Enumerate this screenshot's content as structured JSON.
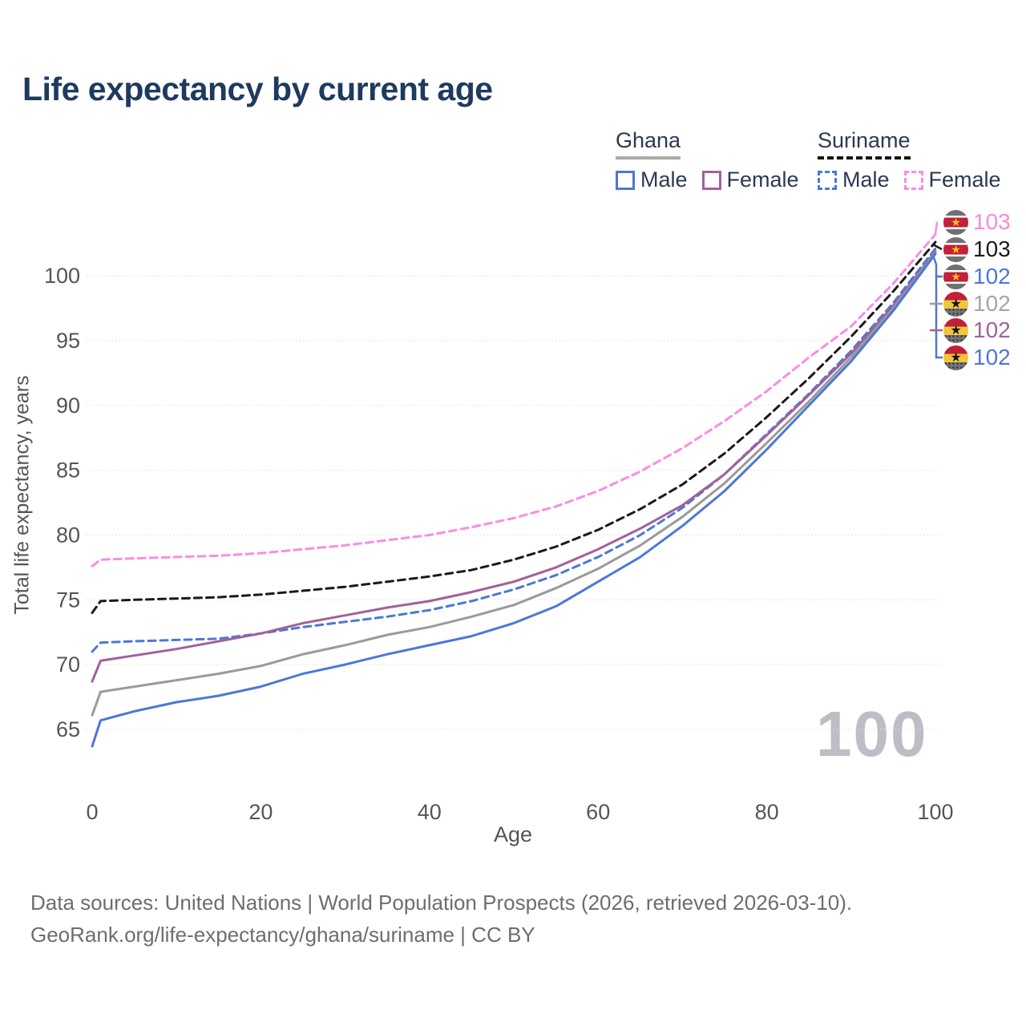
{
  "title": "Life expectancy by current age",
  "watermark": "100",
  "footer": {
    "line1": "Data sources: United Nations | World Population Prospects (2026, retrieved 2026-03-10).",
    "line2": "GeoRank.org/life-expectancy/ghana/suriname | CC BY"
  },
  "legend": {
    "groups": [
      {
        "name": "Ghana",
        "underline": "solid",
        "underline_color": "#a9a9a9",
        "items": [
          {
            "label": "Male",
            "color": "#4b78d8",
            "dash": false
          },
          {
            "label": "Female",
            "color": "#a2609c",
            "dash": false
          }
        ]
      },
      {
        "name": "Suriname",
        "underline": "dashed",
        "underline_color": "#141414",
        "items": [
          {
            "label": "Male",
            "color": "#4b78d8",
            "dash": true
          },
          {
            "label": "Female",
            "color": "#fa8ce4",
            "dash": true
          }
        ]
      }
    ]
  },
  "chart_data": {
    "type": "line",
    "title": "Life expectancy by current age",
    "xlabel": "Age",
    "ylabel": "Total life expectancy, years",
    "xlim": [
      0,
      100
    ],
    "ylim": [
      62,
      104
    ],
    "x_ticks": [
      0,
      20,
      40,
      60,
      80,
      100
    ],
    "y_ticks": [
      65,
      70,
      75,
      80,
      85,
      90,
      95,
      100
    ],
    "grid": "horizontal-dotted",
    "legend_position": "top-right",
    "x": [
      0,
      1,
      5,
      10,
      15,
      20,
      25,
      30,
      35,
      40,
      45,
      50,
      55,
      60,
      65,
      70,
      75,
      80,
      85,
      90,
      95,
      100
    ],
    "series": [
      {
        "name": "Suriname Female",
        "country": "Suriname",
        "group": "Female",
        "color": "#fa8ce4",
        "dash": true,
        "values": [
          77.6,
          78.1,
          78.2,
          78.3,
          78.4,
          78.6,
          78.9,
          79.2,
          79.6,
          80.0,
          80.6,
          81.3,
          82.2,
          83.4,
          84.9,
          86.7,
          88.8,
          91.1,
          93.7,
          96.1,
          99.4,
          103.2
        ]
      },
      {
        "name": "Suriname Total",
        "country": "Suriname",
        "group": "Total",
        "color": "#1a1a1a",
        "dash": true,
        "values": [
          74.0,
          74.9,
          75.0,
          75.1,
          75.2,
          75.4,
          75.7,
          76.0,
          76.4,
          76.8,
          77.3,
          78.1,
          79.1,
          80.4,
          82.0,
          83.9,
          86.3,
          89.1,
          92.1,
          95.3,
          98.8,
          102.6
        ]
      },
      {
        "name": "Suriname Male",
        "country": "Suriname",
        "group": "Male",
        "color": "#4b78d8",
        "dash": true,
        "values": [
          71.0,
          71.7,
          71.8,
          71.9,
          72.0,
          72.4,
          72.9,
          73.3,
          73.7,
          74.2,
          74.9,
          75.8,
          76.9,
          78.3,
          80.0,
          82.1,
          84.7,
          87.8,
          90.9,
          94.2,
          97.9,
          102.1
        ]
      },
      {
        "name": "Ghana Female",
        "country": "Ghana",
        "group": "Female",
        "color": "#a2609c",
        "dash": false,
        "values": [
          68.7,
          70.3,
          70.7,
          71.2,
          71.8,
          72.4,
          73.2,
          73.8,
          74.4,
          74.9,
          75.6,
          76.4,
          77.5,
          78.9,
          80.5,
          82.3,
          84.7,
          87.7,
          90.8,
          94.0,
          97.7,
          101.9
        ]
      },
      {
        "name": "Ghana Total",
        "country": "Ghana",
        "group": "Total",
        "color": "#9a9a9a",
        "dash": false,
        "values": [
          66.1,
          67.9,
          68.3,
          68.8,
          69.3,
          69.9,
          70.8,
          71.5,
          72.3,
          72.9,
          73.7,
          74.6,
          75.9,
          77.4,
          79.2,
          81.4,
          84.0,
          87.1,
          90.3,
          93.7,
          97.5,
          101.8
        ]
      },
      {
        "name": "Ghana Male",
        "country": "Ghana",
        "group": "Male",
        "color": "#4b78d8",
        "dash": false,
        "values": [
          63.7,
          65.7,
          66.4,
          67.1,
          67.6,
          68.3,
          69.3,
          70.0,
          70.8,
          71.5,
          72.2,
          73.2,
          74.5,
          76.4,
          78.3,
          80.7,
          83.4,
          86.6,
          90.0,
          93.4,
          97.3,
          101.7
        ]
      }
    ],
    "end_labels": [
      {
        "value": "103",
        "text_color": "#f988e0",
        "flag": "suriname",
        "series": "Suriname Female"
      },
      {
        "value": "103",
        "text_color": "#1a1a1a",
        "flag": "suriname",
        "series": "Suriname Total"
      },
      {
        "value": "102",
        "text_color": "#4b78d8",
        "flag": "suriname",
        "series": "Suriname Male"
      },
      {
        "value": "102",
        "text_color": "#a5a5ab",
        "flag": "ghana",
        "series": "Ghana Total"
      },
      {
        "value": "102",
        "text_color": "#a2609c",
        "flag": "ghana",
        "series": "Ghana Female"
      },
      {
        "value": "102",
        "text_color": "#4b78d8",
        "flag": "ghana",
        "series": "Ghana Male"
      }
    ]
  }
}
